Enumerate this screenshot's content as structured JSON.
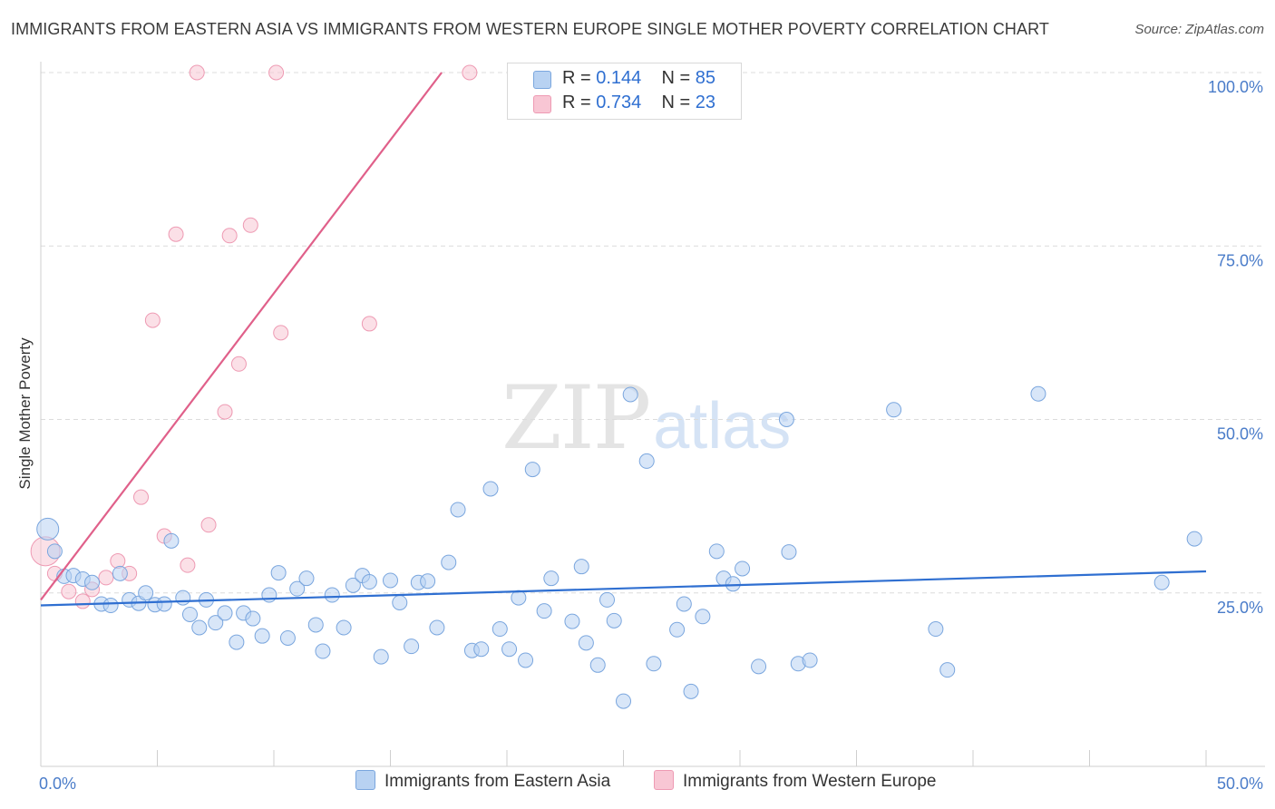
{
  "header": {
    "title": "IMMIGRANTS FROM EASTERN ASIA VS IMMIGRANTS FROM WESTERN EUROPE SINGLE MOTHER POVERTY CORRELATION CHART",
    "source": "Source: ZipAtlas.com"
  },
  "watermark": {
    "zip": "ZIP",
    "atlas": "atlas"
  },
  "legend": {
    "rows": [
      {
        "r_label": "R =",
        "r_value": "0.144",
        "n_label": "N =",
        "n_value": "85"
      },
      {
        "r_label": "R =",
        "r_value": "0.734",
        "n_label": "N =",
        "n_value": "23"
      }
    ]
  },
  "bottom_legend": {
    "series1": "Immigrants from Eastern Asia",
    "series2": "Immigrants from Western Europe"
  },
  "colors": {
    "series1_fill": "#b8d2f2",
    "series1_stroke": "#7aa6de",
    "series1_line": "#2f6fd1",
    "series2_fill": "#f8c6d4",
    "series2_stroke": "#ee9ab3",
    "series2_line": "#e0608a",
    "tick_label": "#4a7cc9",
    "grid": "#dcdcdc"
  },
  "chart_data": {
    "type": "scatter",
    "title": "IMMIGRANTS FROM EASTERN ASIA VS IMMIGRANTS FROM WESTERN EUROPE SINGLE MOTHER POVERTY CORRELATION CHART",
    "xlabel": "",
    "ylabel": "Single Mother Poverty",
    "xlim": [
      0,
      50
    ],
    "ylim": [
      0,
      100
    ],
    "x_tick_labels": [
      {
        "value": 0,
        "label": "0.0%"
      },
      {
        "value": 50,
        "label": "50.0%"
      }
    ],
    "y_tick_labels": [
      {
        "value": 25,
        "label": "25.0%"
      },
      {
        "value": 50,
        "label": "50.0%"
      },
      {
        "value": 75,
        "label": "75.0%"
      },
      {
        "value": 100,
        "label": "100.0%"
      }
    ],
    "grid": true,
    "legend_position": "top-center",
    "series": [
      {
        "name": "Immigrants from Eastern Asia",
        "r": 0.144,
        "n": 85,
        "trend": {
          "x": [
            0,
            50
          ],
          "y": [
            23.2,
            28.1
          ]
        },
        "points": [
          [
            0.3,
            34.2
          ],
          [
            0.6,
            31.0
          ],
          [
            1.0,
            27.4
          ],
          [
            1.4,
            27.5
          ],
          [
            1.8,
            27.0
          ],
          [
            2.2,
            26.5
          ],
          [
            2.6,
            23.4
          ],
          [
            3.0,
            23.2
          ],
          [
            3.4,
            27.8
          ],
          [
            3.8,
            24.0
          ],
          [
            4.2,
            23.5
          ],
          [
            4.5,
            25.0
          ],
          [
            4.9,
            23.3
          ],
          [
            5.3,
            23.4
          ],
          [
            5.6,
            32.5
          ],
          [
            6.1,
            24.3
          ],
          [
            6.4,
            21.9
          ],
          [
            6.8,
            20.0
          ],
          [
            7.1,
            24.0
          ],
          [
            7.5,
            20.7
          ],
          [
            7.9,
            22.1
          ],
          [
            8.4,
            17.9
          ],
          [
            8.7,
            22.1
          ],
          [
            9.1,
            21.3
          ],
          [
            9.5,
            18.8
          ],
          [
            9.8,
            24.7
          ],
          [
            10.2,
            27.9
          ],
          [
            10.6,
            18.5
          ],
          [
            11.0,
            25.6
          ],
          [
            11.4,
            27.1
          ],
          [
            11.8,
            20.4
          ],
          [
            12.1,
            16.6
          ],
          [
            12.5,
            24.7
          ],
          [
            13.0,
            20.0
          ],
          [
            13.4,
            26.1
          ],
          [
            13.8,
            27.5
          ],
          [
            14.1,
            26.6
          ],
          [
            14.6,
            15.8
          ],
          [
            15.0,
            26.8
          ],
          [
            15.4,
            23.6
          ],
          [
            15.9,
            17.3
          ],
          [
            16.2,
            26.5
          ],
          [
            16.6,
            26.7
          ],
          [
            17.0,
            20.0
          ],
          [
            17.5,
            29.4
          ],
          [
            17.9,
            37.0
          ],
          [
            18.5,
            16.7
          ],
          [
            18.9,
            16.9
          ],
          [
            19.3,
            40.0
          ],
          [
            19.7,
            19.8
          ],
          [
            20.1,
            16.9
          ],
          [
            20.5,
            24.3
          ],
          [
            20.8,
            15.3
          ],
          [
            21.1,
            42.8
          ],
          [
            21.6,
            22.4
          ],
          [
            21.9,
            27.1
          ],
          [
            22.8,
            20.9
          ],
          [
            23.2,
            28.8
          ],
          [
            23.4,
            17.8
          ],
          [
            23.9,
            14.6
          ],
          [
            24.3,
            24.0
          ],
          [
            24.6,
            21.0
          ],
          [
            25.0,
            9.4
          ],
          [
            25.3,
            53.6
          ],
          [
            26.0,
            44.0
          ],
          [
            26.3,
            14.8
          ],
          [
            27.3,
            19.7
          ],
          [
            27.6,
            23.4
          ],
          [
            27.9,
            10.8
          ],
          [
            28.4,
            21.6
          ],
          [
            29.0,
            31.0
          ],
          [
            29.3,
            27.1
          ],
          [
            29.7,
            26.3
          ],
          [
            30.1,
            28.5
          ],
          [
            30.8,
            14.4
          ],
          [
            32.0,
            50.0
          ],
          [
            32.1,
            30.9
          ],
          [
            32.5,
            14.8
          ],
          [
            33.0,
            15.3
          ],
          [
            36.6,
            51.4
          ],
          [
            38.4,
            19.8
          ],
          [
            38.9,
            13.9
          ],
          [
            42.8,
            53.7
          ],
          [
            48.1,
            26.5
          ],
          [
            49.5,
            32.8
          ]
        ]
      },
      {
        "name": "Immigrants from Western Europe",
        "r": 0.734,
        "n": 23,
        "trend": {
          "x": [
            0,
            17.2
          ],
          "y": [
            24.0,
            100
          ]
        },
        "points": [
          [
            0.2,
            31.0
          ],
          [
            0.6,
            27.8
          ],
          [
            1.2,
            25.2
          ],
          [
            1.8,
            23.8
          ],
          [
            2.2,
            25.5
          ],
          [
            2.8,
            27.2
          ],
          [
            3.3,
            29.6
          ],
          [
            3.8,
            27.8
          ],
          [
            4.3,
            38.8
          ],
          [
            4.8,
            64.3
          ],
          [
            5.3,
            33.2
          ],
          [
            5.8,
            76.7
          ],
          [
            6.3,
            29.0
          ],
          [
            6.7,
            100.0
          ],
          [
            7.2,
            34.8
          ],
          [
            7.9,
            51.1
          ],
          [
            8.1,
            76.5
          ],
          [
            8.5,
            58.0
          ],
          [
            9.0,
            78.0
          ],
          [
            10.1,
            100.0
          ],
          [
            10.3,
            62.5
          ],
          [
            14.1,
            63.8
          ],
          [
            18.4,
            100.0
          ]
        ]
      }
    ]
  }
}
